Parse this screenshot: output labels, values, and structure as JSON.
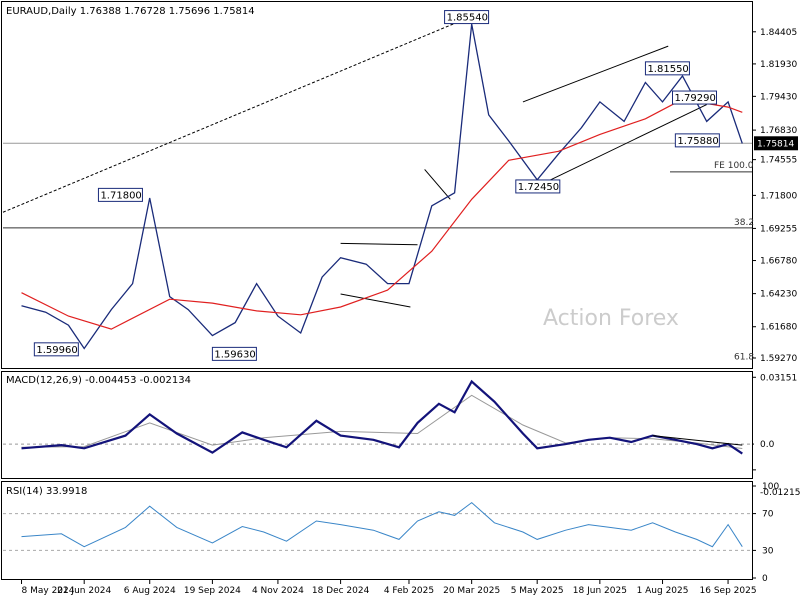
{
  "chart_data": [
    {
      "type": "line",
      "panel": "price",
      "title": "EURAUD,Daily  1.76388 1.76728 1.75696 1.75814",
      "symbol": "EURAUD",
      "timeframe": "Daily",
      "ohlc": {
        "open": 1.76388,
        "high": 1.76728,
        "low": 1.75696,
        "close": 1.75814
      },
      "current_price_label": "1.75814",
      "y_ticks": [
        "1.84405",
        "1.81930",
        "1.79430",
        "1.76830",
        "1.74555",
        "1.71800",
        "1.69255",
        "1.66780",
        "1.64230",
        "1.61680",
        "1.59270"
      ],
      "ylim": [
        1.585,
        1.867
      ],
      "x_tick_labels": [
        "8 May 2024",
        "21 Jun 2024",
        "6 Aug 2024",
        "19 Sep 2024",
        "4 Nov 2024",
        "18 Dec 2024",
        "4 Feb 2025",
        "20 Mar 2025",
        "5 May 2025",
        "18 Jun 2025",
        "1 Aug 2025",
        "16 Sep 2025"
      ],
      "price_labels": [
        "1.85540",
        "1.71800",
        "1.59960",
        "1.59630",
        "1.81550",
        "1.79290",
        "1.75880",
        "1.72450"
      ],
      "fib_labels": [
        "38.2",
        "61.8",
        "FE 100.0"
      ],
      "fib_levels": {
        "38.2": 1.693,
        "61.8": 1.59,
        "FE 100.0": 1.74
      },
      "watermark": "Action Forex",
      "series": [
        {
          "role": "price",
          "color": "#1a2b7a",
          "x": [
            "2024-05-08",
            "2024-05-25",
            "2024-06-10",
            "2024-06-21",
            "2024-07-10",
            "2024-07-25",
            "2024-08-06",
            "2024-08-20",
            "2024-09-02",
            "2024-09-19",
            "2024-10-05",
            "2024-10-20",
            "2024-11-04",
            "2024-11-20",
            "2024-12-05",
            "2024-12-18",
            "2025-01-05",
            "2025-01-20",
            "2025-02-04",
            "2025-02-20",
            "2025-03-08",
            "2025-03-20",
            "2025-04-01",
            "2025-04-15",
            "2025-05-05",
            "2025-05-20",
            "2025-06-05",
            "2025-06-18",
            "2025-07-05",
            "2025-07-20",
            "2025-08-01",
            "2025-08-15",
            "2025-09-01",
            "2025-09-16",
            "2025-09-26"
          ],
          "values": [
            1.633,
            1.628,
            1.618,
            1.6,
            1.63,
            1.65,
            1.716,
            1.64,
            1.63,
            1.61,
            1.62,
            1.65,
            1.625,
            1.612,
            1.655,
            1.67,
            1.665,
            1.65,
            1.65,
            1.71,
            1.72,
            1.85,
            1.78,
            1.76,
            1.73,
            1.75,
            1.77,
            1.79,
            1.775,
            1.805,
            1.79,
            1.81,
            1.775,
            1.79,
            1.758
          ]
        },
        {
          "role": "moving-average",
          "color": "#e02020",
          "x": [
            "2024-05-08",
            "2024-06-10",
            "2024-07-10",
            "2024-08-20",
            "2024-09-19",
            "2024-10-20",
            "2024-11-20",
            "2024-12-18",
            "2025-01-20",
            "2025-02-20",
            "2025-03-20",
            "2025-04-15",
            "2025-05-20",
            "2025-06-18",
            "2025-07-20",
            "2025-08-15",
            "2025-09-16",
            "2025-09-26"
          ],
          "values": [
            1.643,
            1.625,
            1.615,
            1.638,
            1.635,
            1.629,
            1.626,
            1.632,
            1.645,
            1.675,
            1.715,
            1.745,
            1.752,
            1.765,
            1.777,
            1.792,
            1.786,
            1.782
          ]
        }
      ]
    },
    {
      "type": "line",
      "panel": "macd",
      "title": "MACD(12,26,9) -0.004453 -0.002134",
      "y_ticks": [
        "0.03151",
        "0.00",
        "0.0",
        "-0.012158"
      ],
      "ylim": [
        -0.016,
        0.034
      ],
      "series": [
        {
          "role": "macd",
          "color": "#13137a",
          "x": [
            "2024-05-08",
            "2024-06-05",
            "2024-06-21",
            "2024-07-20",
            "2024-08-06",
            "2024-08-25",
            "2024-09-19",
            "2024-10-10",
            "2024-10-25",
            "2024-11-10",
            "2024-12-01",
            "2024-12-18",
            "2025-01-10",
            "2025-01-28",
            "2025-02-10",
            "2025-02-25",
            "2025-03-08",
            "2025-03-20",
            "2025-04-05",
            "2025-04-25",
            "2025-05-05",
            "2025-05-25",
            "2025-06-10",
            "2025-06-25",
            "2025-07-10",
            "2025-07-25",
            "2025-08-10",
            "2025-08-25",
            "2025-09-05",
            "2025-09-16",
            "2025-09-26"
          ],
          "values": [
            -0.002,
            -0.0005,
            -0.002,
            0.004,
            0.014,
            0.005,
            -0.004,
            0.0055,
            0.002,
            -0.0015,
            0.011,
            0.004,
            0.002,
            -0.0015,
            0.01,
            0.019,
            0.015,
            0.0295,
            0.02,
            0.005,
            -0.002,
            0.0,
            0.002,
            0.003,
            0.001,
            0.004,
            0.002,
            0.0,
            -0.002,
            0.0,
            -0.0045
          ]
        },
        {
          "role": "signal",
          "color": "#999999",
          "x": [
            "2024-05-08",
            "2024-06-21",
            "2024-08-06",
            "2024-09-19",
            "2024-10-25",
            "2024-12-18",
            "2025-02-10",
            "2025-03-20",
            "2025-04-25",
            "2025-05-25",
            "2025-06-25",
            "2025-07-25",
            "2025-08-25",
            "2025-09-26"
          ],
          "values": [
            -0.0015,
            -0.0012,
            0.01,
            -0.0005,
            0.003,
            0.006,
            0.005,
            0.023,
            0.009,
            0.0005,
            0.003,
            0.0025,
            0.0005,
            -0.0021
          ]
        }
      ]
    },
    {
      "type": "line",
      "panel": "rsi",
      "title": "RSI(14) 33.9918",
      "y_ticks": [
        "100",
        "70",
        "30",
        "0"
      ],
      "ylim": [
        0,
        100
      ],
      "series": [
        {
          "role": "rsi",
          "color": "#3a86c8",
          "x": [
            "2024-05-08",
            "2024-06-05",
            "2024-06-21",
            "2024-07-20",
            "2024-08-06",
            "2024-08-25",
            "2024-09-19",
            "2024-10-10",
            "2024-10-25",
            "2024-11-10",
            "2024-12-01",
            "2024-12-18",
            "2025-01-10",
            "2025-01-28",
            "2025-02-10",
            "2025-02-25",
            "2025-03-08",
            "2025-03-20",
            "2025-04-05",
            "2025-04-25",
            "2025-05-05",
            "2025-05-25",
            "2025-06-10",
            "2025-06-25",
            "2025-07-10",
            "2025-07-25",
            "2025-08-10",
            "2025-08-25",
            "2025-09-05",
            "2025-09-16",
            "2025-09-26"
          ],
          "values": [
            45,
            48,
            34,
            55,
            78,
            55,
            38,
            56,
            50,
            40,
            62,
            58,
            52,
            42,
            62,
            72,
            68,
            82,
            60,
            50,
            42,
            52,
            58,
            55,
            52,
            60,
            50,
            42,
            34,
            58,
            34
          ]
        }
      ]
    }
  ]
}
